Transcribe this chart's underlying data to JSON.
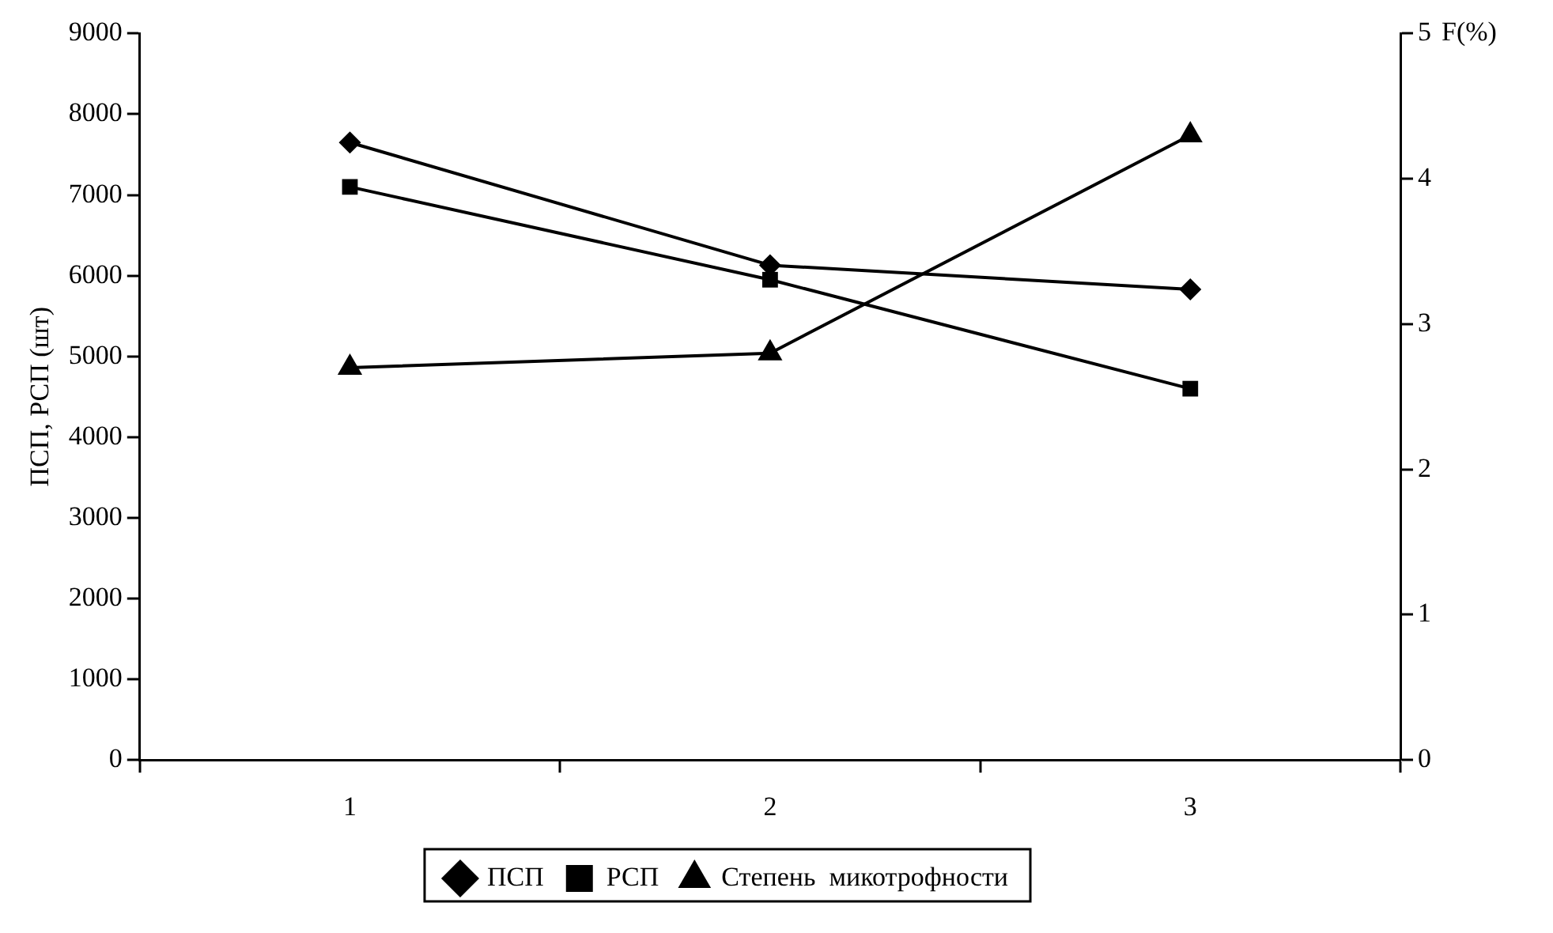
{
  "chart_data": {
    "type": "line",
    "ylabel": "ПСП, РСП (шт)",
    "y2label": "F(%)",
    "categories": [
      "1",
      "2",
      "3"
    ],
    "series": [
      {
        "name": "ПСП",
        "color": "#000000",
        "marker": "diamond",
        "values": [
          7650,
          6130,
          5830
        ]
      },
      {
        "name": "РСП",
        "color": "#000000",
        "marker": "square",
        "values": [
          7100,
          5950,
          4600
        ]
      },
      {
        "name": "Степень  микотрофности",
        "color": "#000000",
        "marker": "triangle",
        "axis": "y2",
        "values": [
          2.7,
          2.8,
          4.3
        ]
      }
    ],
    "ylim": [
      0,
      9000
    ],
    "yticks": [
      0,
      1000,
      2000,
      3000,
      4000,
      5000,
      6000,
      7000,
      8000,
      9000
    ],
    "y2lim": [
      0,
      5
    ],
    "y2ticks": [
      0,
      1,
      2,
      3,
      4,
      5
    ],
    "grid": false,
    "legend": "bottom",
    "line_style": "solid"
  }
}
